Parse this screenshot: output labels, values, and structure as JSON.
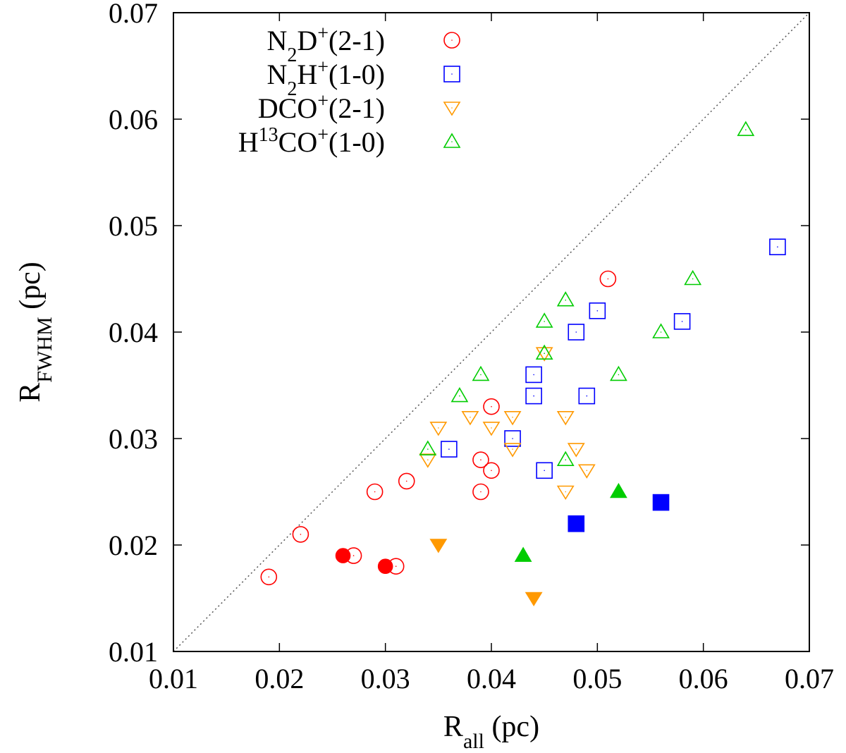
{
  "chart_data": {
    "type": "scatter",
    "title": "",
    "xlabel": {
      "main": "R",
      "sub": "all",
      "unit": " (pc)"
    },
    "ylabel": {
      "main": "R",
      "sub": "FWHM",
      "unit": " (pc)"
    },
    "xlim": [
      0.01,
      0.07
    ],
    "ylim": [
      0.01,
      0.07
    ],
    "xticks": [
      "0.01",
      "0.02",
      "0.03",
      "0.04",
      "0.05",
      "0.06",
      "0.07"
    ],
    "yticks": [
      "0.01",
      "0.02",
      "0.03",
      "0.04",
      "0.05",
      "0.06",
      "0.07"
    ],
    "reference_line": "y = x",
    "legend_position": "top-left",
    "series": [
      {
        "key": "n2d",
        "legend": {
          "before": "N",
          "sub": "2",
          "mid": "D",
          "sup": "+",
          "after": "(2-1)"
        },
        "marker": "circle",
        "color": "#ff0000",
        "open": [
          [
            0.019,
            0.017
          ],
          [
            0.022,
            0.021
          ],
          [
            0.027,
            0.019
          ],
          [
            0.029,
            0.025
          ],
          [
            0.031,
            0.018
          ],
          [
            0.032,
            0.026
          ],
          [
            0.039,
            0.025
          ],
          [
            0.039,
            0.028
          ],
          [
            0.04,
            0.033
          ],
          [
            0.04,
            0.027
          ],
          [
            0.051,
            0.045
          ]
        ],
        "filled": [
          [
            0.026,
            0.019
          ],
          [
            0.03,
            0.018
          ]
        ]
      },
      {
        "key": "n2h",
        "legend": {
          "before": "N",
          "sub": "2",
          "mid": "H",
          "sup": "+",
          "after": "(1-0)"
        },
        "marker": "square",
        "color": "#0000ff",
        "open": [
          [
            0.036,
            0.029
          ],
          [
            0.042,
            0.03
          ],
          [
            0.044,
            0.036
          ],
          [
            0.044,
            0.034
          ],
          [
            0.045,
            0.027
          ],
          [
            0.048,
            0.04
          ],
          [
            0.049,
            0.034
          ],
          [
            0.05,
            0.042
          ],
          [
            0.058,
            0.041
          ],
          [
            0.067,
            0.048
          ]
        ],
        "filled": [
          [
            0.048,
            0.022
          ],
          [
            0.056,
            0.024
          ]
        ]
      },
      {
        "key": "dco",
        "legend": {
          "before": "DCO",
          "sub": "",
          "mid": "",
          "sup": "+",
          "after": "(2-1)"
        },
        "marker": "triangle-down",
        "color": "#ff9900",
        "open": [
          [
            0.034,
            0.028
          ],
          [
            0.035,
            0.031
          ],
          [
            0.038,
            0.032
          ],
          [
            0.04,
            0.031
          ],
          [
            0.042,
            0.032
          ],
          [
            0.042,
            0.029
          ],
          [
            0.045,
            0.038
          ],
          [
            0.047,
            0.032
          ],
          [
            0.047,
            0.025
          ],
          [
            0.048,
            0.029
          ],
          [
            0.049,
            0.027
          ]
        ],
        "filled": [
          [
            0.035,
            0.02
          ],
          [
            0.044,
            0.015
          ]
        ]
      },
      {
        "key": "h13co",
        "legend": {
          "before": "H",
          "presup": "13",
          "mid": "CO",
          "sup": "+",
          "after": "(1-0)"
        },
        "marker": "triangle-up",
        "color": "#00cc00",
        "open": [
          [
            0.034,
            0.029
          ],
          [
            0.037,
            0.034
          ],
          [
            0.039,
            0.036
          ],
          [
            0.045,
            0.041
          ],
          [
            0.045,
            0.038
          ],
          [
            0.047,
            0.043
          ],
          [
            0.047,
            0.028
          ],
          [
            0.052,
            0.036
          ],
          [
            0.056,
            0.04
          ],
          [
            0.059,
            0.045
          ],
          [
            0.064,
            0.059
          ]
        ],
        "filled": [
          [
            0.043,
            0.019
          ],
          [
            0.052,
            0.025
          ]
        ]
      }
    ]
  }
}
